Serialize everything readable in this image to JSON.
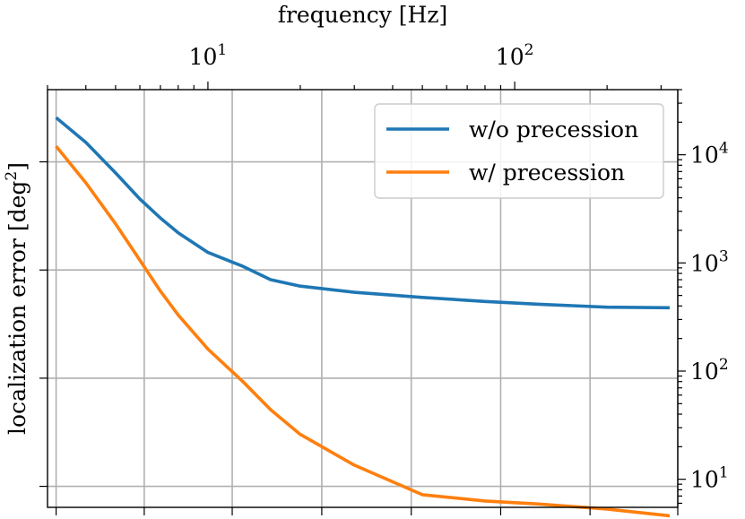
{
  "chart_data": {
    "type": "line",
    "title": "",
    "xlabel": "frequency [Hz]",
    "ylabel": "localization error [deg^2]",
    "x_axis_position": "top",
    "y_axis_position": "right",
    "xscale": "log",
    "yscale": "log",
    "xlim": [
      3,
      340
    ],
    "ylim": [
      5.5,
      40000
    ],
    "grid": true,
    "legend_position": "upper-right",
    "x_major_ticks": [
      {
        "value": 10,
        "base": "10",
        "exp": "1"
      },
      {
        "value": 100,
        "base": "10",
        "exp": "2"
      }
    ],
    "y_major_ticks": [
      {
        "value": 10,
        "base": "10",
        "exp": "1"
      },
      {
        "value": 100,
        "base": "10",
        "exp": "2"
      },
      {
        "value": 1000,
        "base": "10",
        "exp": "3"
      },
      {
        "value": 10000,
        "base": "10",
        "exp": "4"
      }
    ],
    "series": [
      {
        "name": "w/o precession",
        "color": "#1f77b4",
        "x": [
          3.2,
          4.0,
          5.0,
          6.0,
          7.0,
          8.0,
          10.0,
          13.0,
          16.0,
          20.0,
          30.0,
          50.0,
          80.0,
          120.0,
          200.0,
          320.0
        ],
        "y": [
          22000,
          13000,
          6800,
          3900,
          2600,
          1900,
          1250,
          930,
          700,
          610,
          535,
          480,
          440,
          415,
          390,
          385
        ]
      },
      {
        "name": "w/ precession",
        "color": "#ff7f0e",
        "x": [
          3.2,
          4.0,
          5.0,
          6.0,
          7.0,
          8.0,
          10.0,
          13.0,
          16.0,
          20.0,
          30.0,
          50.0,
          80.0,
          120.0,
          200.0,
          320.0
        ],
        "y": [
          12000,
          5500,
          2300,
          1060,
          550,
          330,
          160,
          80,
          44,
          26,
          13.5,
          7.2,
          6.3,
          5.9,
          5.3,
          4.6
        ]
      }
    ]
  }
}
